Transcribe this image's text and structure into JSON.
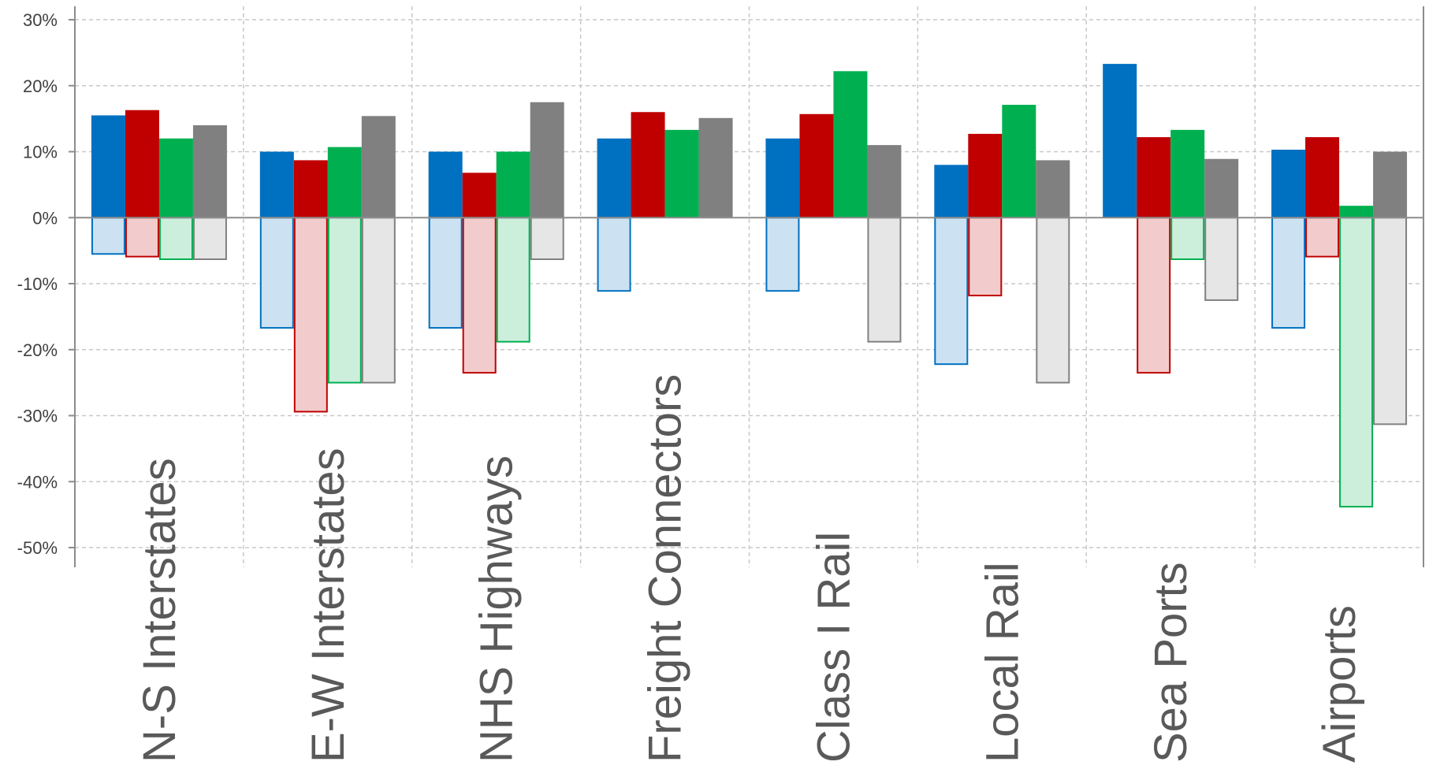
{
  "chart_data": {
    "type": "bar",
    "title": "",
    "xlabel": "",
    "ylabel": "",
    "ylim": [
      -50,
      30
    ],
    "y_ticks": [
      30,
      20,
      10,
      0,
      -10,
      -20,
      -30,
      -40,
      -50
    ],
    "y_tick_format": "percent",
    "grid": true,
    "legend": "none",
    "categories": [
      "N-S Interstates",
      "E-W Interstates",
      "NHS Highways",
      "Freight Connectors",
      "Class I Rail",
      "Local Rail",
      "Sea Ports",
      "Airports"
    ],
    "series": [
      {
        "color": "#0070c0",
        "positive": [
          15.5,
          10,
          10,
          12,
          12,
          8,
          23.3,
          10.3
        ],
        "negative": [
          -5.5,
          -16.7,
          -16.7,
          -11.1,
          -11.1,
          -22.2,
          0,
          -16.7
        ]
      },
      {
        "color": "#c00000",
        "positive": [
          16.3,
          8.7,
          6.8,
          16,
          15.7,
          12.7,
          12.2,
          12.2
        ],
        "negative": [
          -5.9,
          -29.4,
          -23.5,
          0,
          0,
          -11.8,
          -23.5,
          -5.9
        ]
      },
      {
        "color": "#00b050",
        "positive": [
          12,
          10.7,
          10,
          13.3,
          22.2,
          17.1,
          13.3,
          1.8
        ],
        "negative": [
          -6.3,
          -25,
          -18.8,
          0,
          0,
          0,
          -6.3,
          -43.8
        ]
      },
      {
        "color": "#808080",
        "positive": [
          14,
          15.4,
          17.5,
          15.1,
          11,
          8.7,
          8.9,
          10
        ],
        "negative": [
          -6.3,
          -25,
          -6.3,
          0,
          -18.8,
          -25,
          -12.5,
          -31.3
        ]
      }
    ]
  }
}
